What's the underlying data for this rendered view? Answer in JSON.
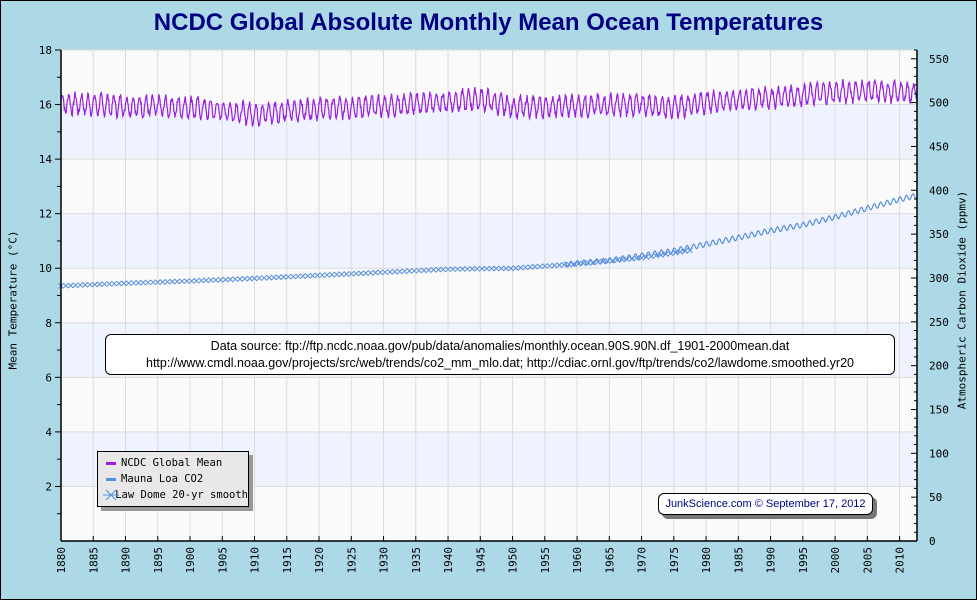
{
  "chart_data": {
    "type": "line",
    "title": "NCDC Global Absolute Monthly Mean Ocean Temperatures",
    "xlabel": "",
    "ylabel": "Mean Temperature (°C)",
    "ylabel_right": "Atmospheric Carbon Dioxide (ppmv)",
    "xlim": [
      1880,
      2012.7
    ],
    "ylim": [
      0,
      18
    ],
    "ylim_right": [
      0,
      560
    ],
    "x_ticks": [
      "1880",
      "1885",
      "1890",
      "1895",
      "1900",
      "1905",
      "1910",
      "1915",
      "1920",
      "1925",
      "1930",
      "1935",
      "1940",
      "1945",
      "1950",
      "1955",
      "1960",
      "1965",
      "1970",
      "1975",
      "1980",
      "1985",
      "1990",
      "1995",
      "2000",
      "2005",
      "2010"
    ],
    "y_ticks": [
      "2",
      "4",
      "6",
      "8",
      "10",
      "12",
      "14",
      "16",
      "18"
    ],
    "y_ticks_right": [
      "0",
      "50",
      "100",
      "150",
      "200",
      "250",
      "300",
      "350",
      "400",
      "450",
      "500",
      "550"
    ],
    "grid": true,
    "legend_position": "bottom-left",
    "series": [
      {
        "name": "NCDC Global Mean",
        "axis": "left",
        "color": "#9a1fe0",
        "style": "line",
        "description": "monthly mean, ~0.35°C seasonal amplitude around the trend",
        "trend_x": [
          1880,
          1890,
          1900,
          1910,
          1920,
          1930,
          1940,
          1945,
          1950,
          1960,
          1970,
          1975,
          1980,
          1990,
          2000,
          2005,
          2010,
          2012.7
        ],
        "trend_y": [
          16.05,
          15.95,
          15.9,
          15.65,
          15.85,
          15.95,
          16.1,
          16.2,
          15.9,
          15.95,
          16.0,
          15.9,
          16.1,
          16.25,
          16.45,
          16.5,
          16.45,
          16.45
        ],
        "seasonal_amplitude": 0.35
      },
      {
        "name": "Mauna Loa CO2",
        "axis": "right",
        "color": "#5b8fd9",
        "style": "line",
        "description": "monthly CO2 with seasonal cycle",
        "x": [
          1958,
          1960,
          1965,
          1970,
          1975,
          1980,
          1985,
          1990,
          1995,
          2000,
          2005,
          2010,
          2012.7
        ],
        "y": [
          315,
          317,
          320,
          325.5,
          331,
          338.5,
          346,
          354,
          360.5,
          369.5,
          379.5,
          389.5,
          394
        ],
        "seasonal_amplitude": 3
      },
      {
        "name": "Law Dome 20-yr smooth",
        "axis": "right",
        "color": "#5b8fd9",
        "style": "x-markers",
        "x": [
          1880,
          1890,
          1900,
          1910,
          1920,
          1930,
          1940,
          1950,
          1960,
          1970,
          1978
        ],
        "y": [
          291,
          294,
          296.5,
          299.5,
          303,
          306.5,
          310,
          311,
          316,
          323,
          332
        ]
      }
    ]
  },
  "annotations": {
    "source_line1": "Data source: ftp://ftp.ncdc.noaa.gov/pub/data/anomalies/monthly.ocean.90S.90N.df_1901-2000mean.dat",
    "source_line2": "http://www.cmdl.noaa.gov/projects/src/web/trends/co2_mm_mlo.dat; http://cdiac.ornl.gov/ftp/trends/co2/lawdome.smoothed.yr20",
    "credit": "JunkScience.com © September 17, 2012"
  },
  "colors": {
    "background": "#add8e6",
    "title": "#000080",
    "plot_band_light": "#fafafa",
    "plot_band_blue": "#eef3fe",
    "gridline": "#dcdcdc"
  }
}
